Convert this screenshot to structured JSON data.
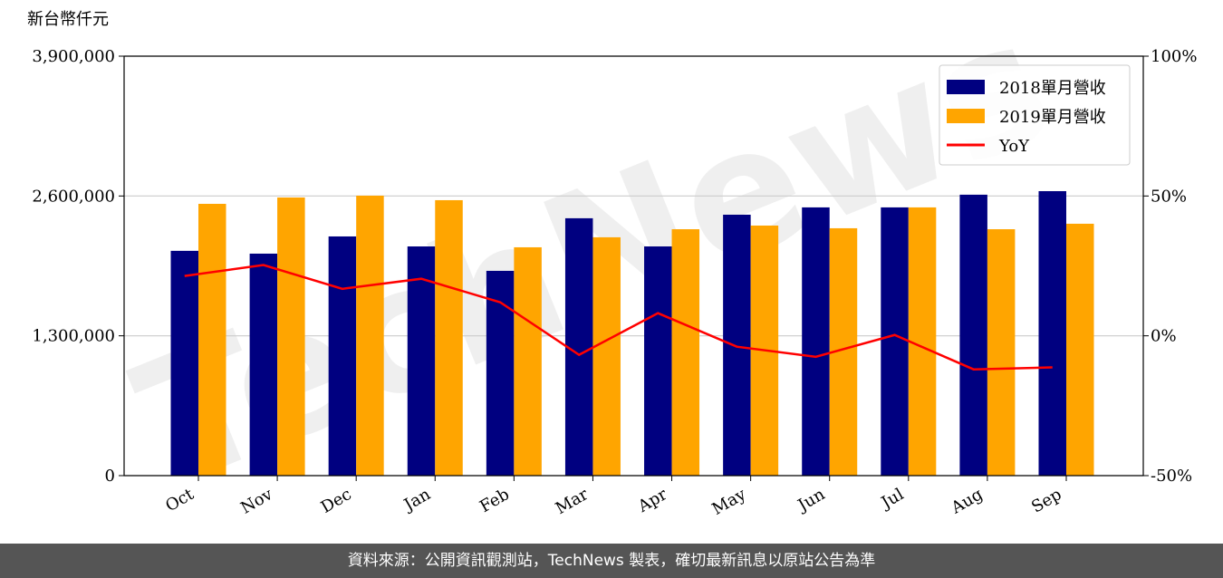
{
  "chart_data": {
    "type": "bar_line",
    "y_label": "新台幣仟元",
    "watermark": "TechNews",
    "categories": [
      "Oct",
      "Nov",
      "Dec",
      "Jan",
      "Feb",
      "Mar",
      "Apr",
      "May",
      "Jun",
      "Jul",
      "Aug",
      "Sep"
    ],
    "series": [
      {
        "name": "2018單月營收",
        "color": "#000080",
        "type": "bar",
        "values": [
          2090000,
          2064000,
          2224000,
          2131000,
          1904000,
          2393000,
          2131000,
          2426000,
          2494000,
          2494000,
          2612000,
          2645000
        ]
      },
      {
        "name": "2019單月營收",
        "color": "#ffa500",
        "type": "bar",
        "values": [
          2527000,
          2586000,
          2603000,
          2561000,
          2123000,
          2216000,
          2291000,
          2325000,
          2300000,
          2494000,
          2291000,
          2342000
        ]
      },
      {
        "name": "YoY",
        "color": "#ff0000",
        "type": "line",
        "axis": "y2",
        "values": [
          21.4,
          25.3,
          16.8,
          20.4,
          12.0,
          -6.8,
          8.1,
          -3.9,
          -7.5,
          0.3,
          -12.0,
          -11.3
        ]
      }
    ],
    "ylim": [
      0,
      3900000
    ],
    "yticks": [
      0,
      {
        "value": 1300000,
        "label": "1,300,000"
      },
      {
        "value": 2600000,
        "label": "2,600,000"
      },
      {
        "value": 3900000,
        "label": "3,900,000"
      }
    ],
    "y2lim": [
      -50,
      100
    ],
    "y2ticks": [
      {
        "value": -50,
        "label": "-50%"
      },
      {
        "value": 0,
        "label": "0%"
      },
      {
        "value": 50,
        "label": "50%"
      },
      {
        "value": 100,
        "label": "100%"
      }
    ],
    "grid": true,
    "legend": "upper right"
  },
  "footer": "資料來源：公開資訊觀測站，TechNews 製表，確切最新訊息以原站公告為準"
}
